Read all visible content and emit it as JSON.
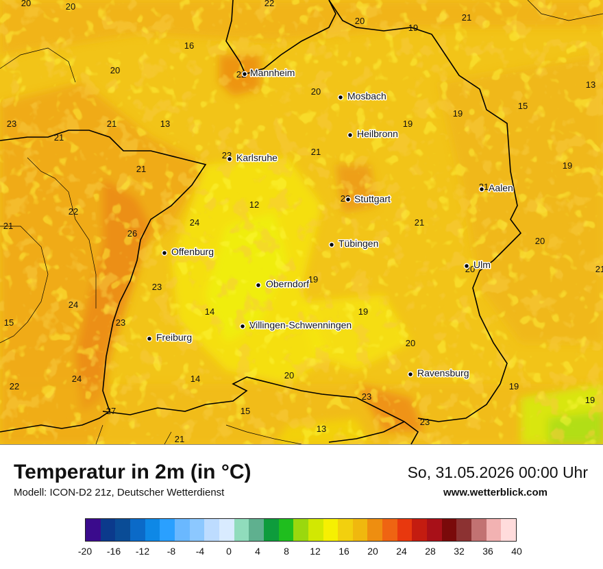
{
  "header": {
    "title": "Temperatur in 2m (in °C)",
    "model": "Modell: ICON-D2 21z, Deutscher Wetterdienst",
    "datetime": "So, 31.05.2026 00:00 Uhr",
    "website": "www.wetterblick.com"
  },
  "cities": [
    {
      "name": "Mannheim"
    },
    {
      "name": "Mosbach"
    },
    {
      "name": "Heilbronn"
    },
    {
      "name": "Karlsruhe"
    },
    {
      "name": "Aalen"
    },
    {
      "name": "Stuttgart"
    },
    {
      "name": "Offenburg"
    },
    {
      "name": "Tübingen"
    },
    {
      "name": "Ulm"
    },
    {
      "name": "Oberndorf"
    },
    {
      "name": "Villingen-Schwenningen"
    },
    {
      "name": "Freiburg"
    },
    {
      "name": "Ravensburg"
    }
  ],
  "temperature_labels": [
    "20",
    "20",
    "22",
    "20",
    "19",
    "21",
    "16",
    "20",
    "22",
    "20",
    "13",
    "19",
    "15",
    "23",
    "21",
    "13",
    "19",
    "21",
    "21",
    "23",
    "21",
    "19",
    "22",
    "12",
    "23",
    "21",
    "21",
    "24",
    "26",
    "21",
    "20",
    "23",
    "19",
    "20",
    "24",
    "23",
    "14",
    "19",
    "15",
    "23",
    "20",
    "24",
    "14",
    "20",
    "19",
    "22",
    "23",
    "19",
    "27",
    "15",
    "13",
    "23",
    "21",
    "21"
  ],
  "colorbar": {
    "colors": [
      "#3a0b8c",
      "#0b3a8c",
      "#0a4c96",
      "#0b6ac8",
      "#0e88e6",
      "#2aa0ff",
      "#6ab8ff",
      "#8cc8ff",
      "#bddcff",
      "#d9ebff",
      "#90dcbc",
      "#5fb08f",
      "#0e9c3c",
      "#1fbe1e",
      "#9ad80e",
      "#d2e802",
      "#f6f002",
      "#f2d00e",
      "#f0b80e",
      "#ee8e10",
      "#ef6412",
      "#e8380e",
      "#c41c10",
      "#a81018",
      "#7a0a0a",
      "#8c3232",
      "#c27272",
      "#f2b2b2",
      "#ffdcdc"
    ],
    "ticks": [
      "-20",
      "-16",
      "-12",
      "-8",
      "-4",
      "0",
      "4",
      "8",
      "12",
      "16",
      "20",
      "24",
      "28",
      "32",
      "36",
      "40"
    ]
  }
}
